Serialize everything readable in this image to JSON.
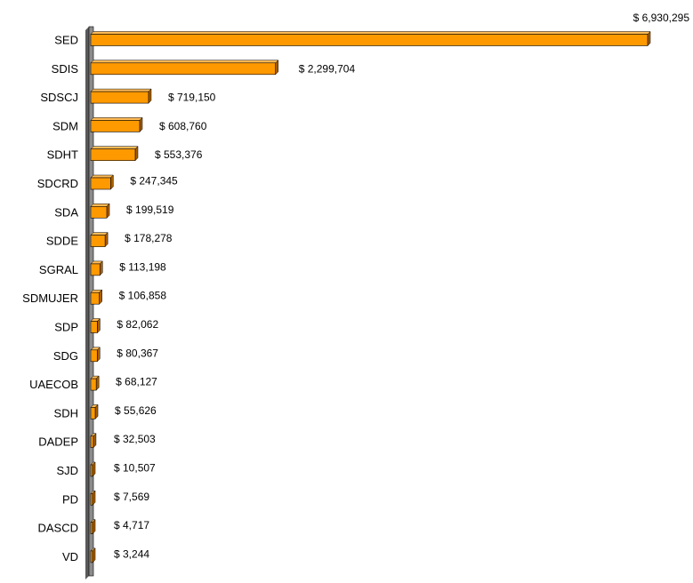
{
  "chart_data": {
    "type": "bar",
    "orientation": "horizontal",
    "three_d": true,
    "grid": false,
    "legend": "none",
    "title": "",
    "xlabel": "",
    "ylabel": "",
    "xlim": [
      0,
      6930295
    ],
    "bar_color": "#ff9900",
    "bar_side_color": "#a85f00",
    "axis_wall_color": "#8c8c8c",
    "categories": [
      "SED",
      "SDIS",
      "SDSCJ",
      "SDM",
      "SDHT",
      "SDCRD",
      "SDA",
      "SDDE",
      "SGRAL",
      "SDMUJER",
      "SDP",
      "SDG",
      "UAECOB",
      "SDH",
      "DADEP",
      "SJD",
      "PD",
      "DASCD",
      "VD"
    ],
    "values": [
      6930295,
      2299704,
      719150,
      608760,
      553376,
      247345,
      199519,
      178278,
      113198,
      106858,
      82062,
      80367,
      68127,
      55626,
      32503,
      10507,
      7569,
      4717,
      3244
    ],
    "value_labels": [
      "$ 6,930,295",
      "$ 2,299,704",
      "$ 719,150",
      "$ 608,760",
      "$ 553,376",
      "$ 247,345",
      "$ 199,519",
      "$ 178,278",
      "$ 113,198",
      "$ 106,858",
      "$ 82,062",
      "$ 80,367",
      "$ 68,127",
      "$ 55,626",
      "$ 32,503",
      "$ 10,507",
      "$ 7,569",
      "$ 4,717",
      "$ 3,244"
    ]
  }
}
